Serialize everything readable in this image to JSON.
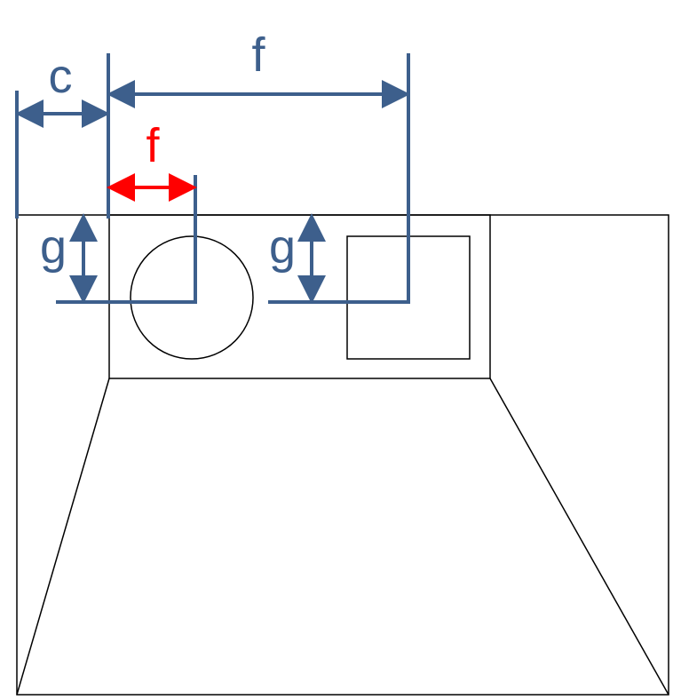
{
  "labels": {
    "c": "c",
    "f_top": "f",
    "f_inner": "f",
    "g_left": "g",
    "g_right": "g"
  },
  "colors": {
    "outline": "#000000",
    "dimension": "#3d5f8c",
    "highlight": "#ff0000"
  }
}
